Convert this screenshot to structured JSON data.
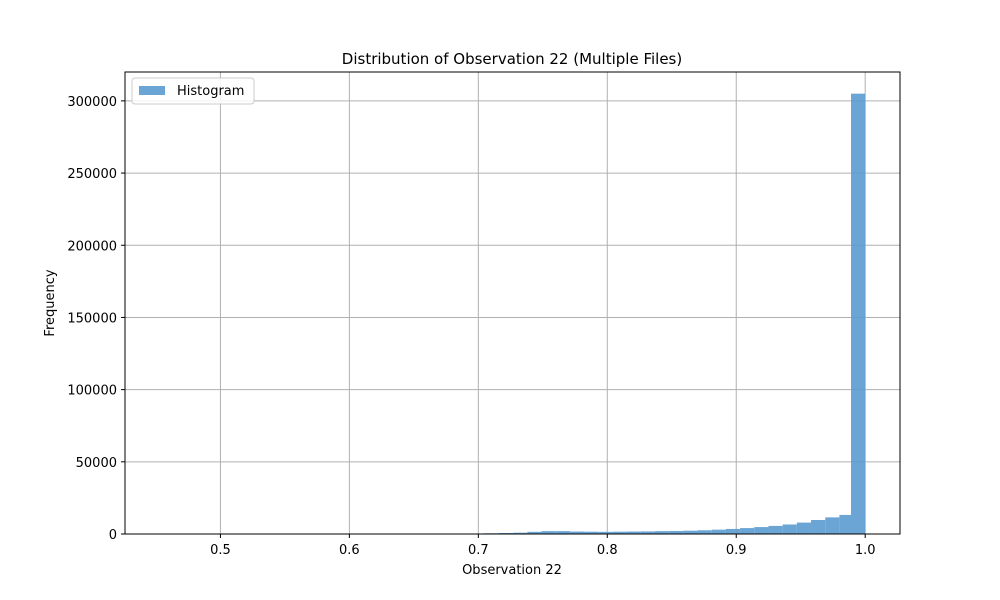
{
  "chart_data": {
    "type": "bar",
    "title": "Distribution of Observation 22 (Multiple Files)",
    "xlabel": "Observation 22",
    "ylabel": "Frequency",
    "xlim": [
      0.426,
      1.027
    ],
    "ylim": [
      0,
      320000
    ],
    "x_ticks": [
      "0.5",
      "0.6",
      "0.7",
      "0.8",
      "0.9",
      "1.0"
    ],
    "x_tick_values": [
      0.5,
      0.6,
      0.7,
      0.8,
      0.9,
      1.0
    ],
    "y_ticks": [
      "0",
      "50000",
      "100000",
      "150000",
      "200000",
      "250000",
      "300000"
    ],
    "y_tick_values": [
      0,
      50000,
      100000,
      150000,
      200000,
      250000,
      300000
    ],
    "grid": true,
    "legend": {
      "position": "top-left",
      "entries": [
        "Histogram"
      ]
    },
    "series": [
      {
        "name": "Histogram",
        "color": "#5b9bd1",
        "bins": [
          {
            "x0": 0.704,
            "x1": 0.716,
            "value": 500
          },
          {
            "x0": 0.716,
            "x1": 0.727,
            "value": 700
          },
          {
            "x0": 0.727,
            "x1": 0.738,
            "value": 900
          },
          {
            "x0": 0.738,
            "x1": 0.749,
            "value": 1500
          },
          {
            "x0": 0.749,
            "x1": 0.76,
            "value": 2000
          },
          {
            "x0": 0.76,
            "x1": 0.771,
            "value": 2000
          },
          {
            "x0": 0.771,
            "x1": 0.782,
            "value": 1700
          },
          {
            "x0": 0.782,
            "x1": 0.793,
            "value": 1600
          },
          {
            "x0": 0.793,
            "x1": 0.804,
            "value": 1500
          },
          {
            "x0": 0.804,
            "x1": 0.815,
            "value": 1600
          },
          {
            "x0": 0.815,
            "x1": 0.826,
            "value": 1700
          },
          {
            "x0": 0.826,
            "x1": 0.837,
            "value": 1800
          },
          {
            "x0": 0.837,
            "x1": 0.848,
            "value": 2000
          },
          {
            "x0": 0.848,
            "x1": 0.859,
            "value": 2100
          },
          {
            "x0": 0.859,
            "x1": 0.87,
            "value": 2300
          },
          {
            "x0": 0.87,
            "x1": 0.881,
            "value": 2600
          },
          {
            "x0": 0.881,
            "x1": 0.892,
            "value": 3000
          },
          {
            "x0": 0.892,
            "x1": 0.903,
            "value": 3500
          },
          {
            "x0": 0.903,
            "x1": 0.914,
            "value": 4100
          },
          {
            "x0": 0.914,
            "x1": 0.925,
            "value": 4800
          },
          {
            "x0": 0.925,
            "x1": 0.936,
            "value": 5600
          },
          {
            "x0": 0.936,
            "x1": 0.947,
            "value": 6600
          },
          {
            "x0": 0.947,
            "x1": 0.958,
            "value": 7900
          },
          {
            "x0": 0.958,
            "x1": 0.969,
            "value": 9700
          },
          {
            "x0": 0.969,
            "x1": 0.98,
            "value": 11500
          },
          {
            "x0": 0.98,
            "x1": 0.989,
            "value": 13200
          },
          {
            "x0": 0.989,
            "x1": 1.0,
            "value": 305000
          }
        ]
      }
    ]
  }
}
